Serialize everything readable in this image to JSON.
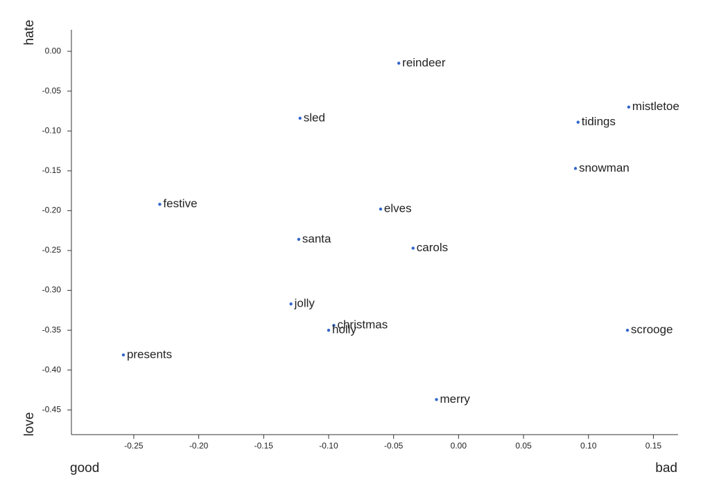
{
  "chart_data": {
    "type": "scatter",
    "x_label_left": "good",
    "x_label_right": "bad",
    "y_label_top": "hate",
    "y_label_bottom": "love",
    "color": "#3366cc",
    "labels": [
      "reindeer",
      "sled",
      "mistletoe",
      "tidings",
      "snowman",
      "festive",
      "elves",
      "santa",
      "carols",
      "jolly",
      "christmas",
      "holly",
      "scrooge",
      "presents",
      "merry"
    ],
    "x": [
      -0.046,
      -0.122,
      0.131,
      0.092,
      0.09,
      -0.23,
      -0.06,
      -0.123,
      -0.035,
      -0.129,
      -0.096,
      -0.1,
      0.13,
      -0.258,
      -0.017
    ],
    "values": [
      -0.015,
      -0.084,
      -0.07,
      -0.089,
      -0.147,
      -0.192,
      -0.198,
      -0.236,
      -0.247,
      -0.317,
      -0.344,
      -0.35,
      -0.35,
      -0.381,
      -0.437
    ],
    "xlim": [
      -0.298,
      0.169
    ],
    "ylim": [
      -0.481,
      0.027
    ],
    "xticks": [
      -0.25,
      {
        "value": -0.2,
        "label": "-0.20"
      },
      -0.15,
      {
        "value": -0.1,
        "label": "-0.10"
      },
      -0.05,
      {
        "value": 0,
        "label": "0.00"
      },
      0.05,
      {
        "value": 0.1,
        "label": "0.10"
      },
      0.15
    ],
    "yticks": [
      {
        "value": 0,
        "label": "0.00"
      },
      -0.05,
      {
        "value": -0.1,
        "label": "-0.10"
      },
      -0.15,
      {
        "value": -0.2,
        "label": "-0.20"
      },
      -0.25,
      {
        "value": -0.3,
        "label": "-0.30"
      },
      -0.35,
      {
        "value": -0.4,
        "label": "-0.40"
      },
      -0.45
    ]
  }
}
